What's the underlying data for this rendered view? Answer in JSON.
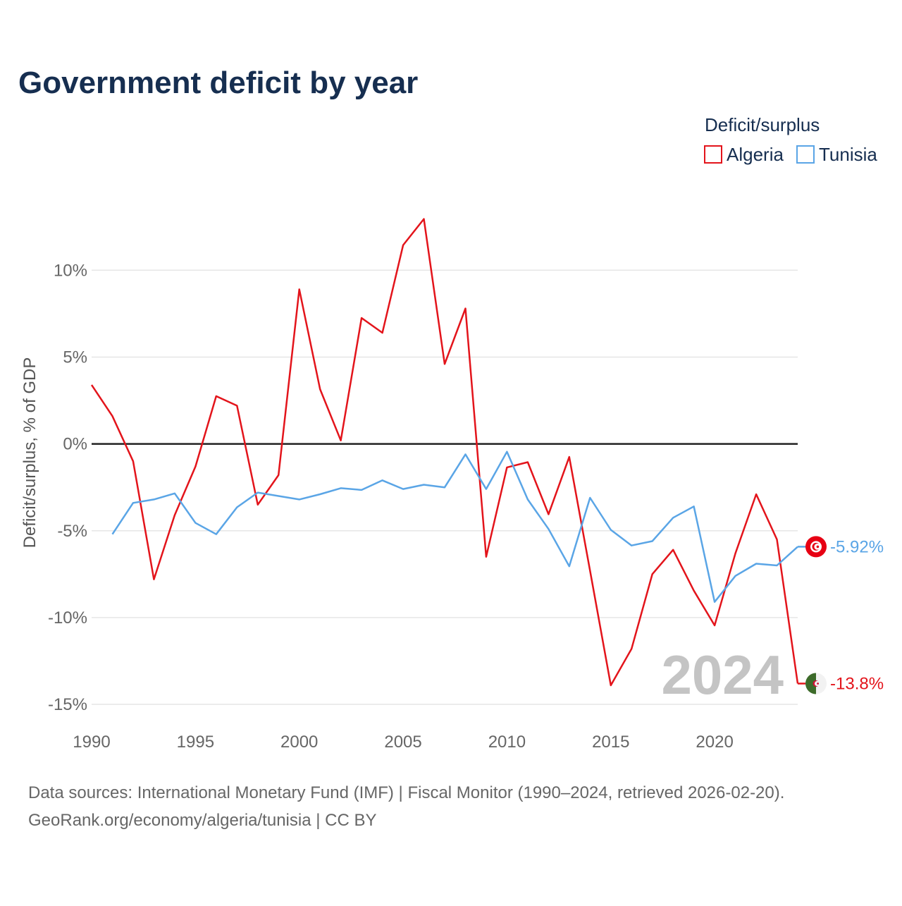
{
  "chart_data": {
    "type": "line",
    "title": "Government deficit by year",
    "ylabel": "Deficit/surplus, % of GDP",
    "xlabel": "",
    "ylim": [
      -15,
      13.5
    ],
    "xlim": [
      1990,
      2024
    ],
    "y_ticks": [
      -15,
      -10,
      -5,
      0,
      5,
      10
    ],
    "y_tick_labels": [
      "-15%",
      "-10%",
      "-5%",
      "0%",
      "5%",
      "10%"
    ],
    "x_ticks": [
      1990,
      1995,
      2000,
      2005,
      2010,
      2015,
      2020
    ],
    "x_tick_labels": [
      "1990",
      "1995",
      "2000",
      "2005",
      "2010",
      "2015",
      "2020"
    ],
    "legend_title": "Deficit/surplus",
    "legend_position": "top-right",
    "year_label": "2024",
    "series": [
      {
        "name": "Algeria",
        "color": "#e3141b",
        "end_label": "-13.8%",
        "x": [
          1990,
          1991,
          1992,
          1993,
          1994,
          1995,
          1996,
          1997,
          1998,
          1999,
          2000,
          2001,
          2002,
          2003,
          2004,
          2005,
          2006,
          2007,
          2008,
          2009,
          2010,
          2011,
          2012,
          2013,
          2014,
          2015,
          2016,
          2017,
          2018,
          2019,
          2020,
          2021,
          2022,
          2023,
          2024
        ],
        "values": [
          3.4,
          1.6,
          -1.0,
          -7.8,
          -4.1,
          -1.3,
          2.75,
          2.2,
          -3.5,
          -1.8,
          8.9,
          3.15,
          0.2,
          7.25,
          6.4,
          11.45,
          12.95,
          4.6,
          7.8,
          -6.5,
          -1.35,
          -1.05,
          -4.05,
          -0.75,
          -7.3,
          -13.9,
          -11.8,
          -7.5,
          -6.1,
          -8.45,
          -10.45,
          -6.3,
          -2.9,
          -5.5,
          -13.8
        ]
      },
      {
        "name": "Tunisia",
        "color": "#5aa5e6",
        "end_label": "-5.92%",
        "x": [
          1991,
          1992,
          1993,
          1994,
          1995,
          1996,
          1997,
          1998,
          1999,
          2000,
          2001,
          2002,
          2003,
          2004,
          2005,
          2006,
          2007,
          2008,
          2009,
          2010,
          2011,
          2012,
          2013,
          2014,
          2015,
          2016,
          2017,
          2018,
          2019,
          2020,
          2021,
          2022,
          2023,
          2024
        ],
        "values": [
          -5.2,
          -3.4,
          -3.2,
          -2.85,
          -4.55,
          -5.2,
          -3.65,
          -2.8,
          -3.0,
          -3.2,
          -2.9,
          -2.55,
          -2.65,
          -2.1,
          -2.6,
          -2.35,
          -2.5,
          -0.6,
          -2.6,
          -0.45,
          -3.2,
          -4.9,
          -7.05,
          -3.1,
          -4.95,
          -5.85,
          -5.6,
          -4.25,
          -3.6,
          -9.1,
          -7.6,
          -6.9,
          -7.0,
          -5.92
        ]
      }
    ],
    "sources": "Data sources: International Monetary Fund (IMF) | Fiscal Monitor (1990–2024, retrieved 2026-02-20).",
    "attribution": "GeoRank.org/economy/algeria/tunisia | CC BY"
  }
}
